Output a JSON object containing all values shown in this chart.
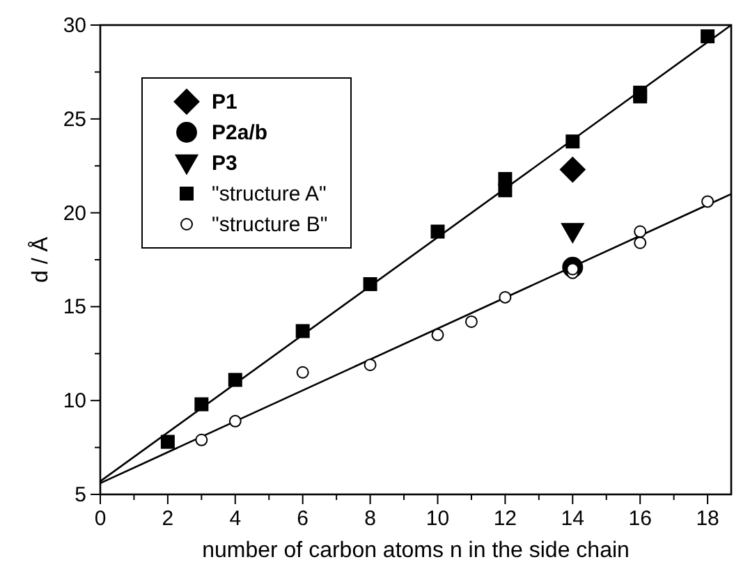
{
  "chart_data": {
    "type": "scatter",
    "xlabel": "number of carbon atoms n in the side chain",
    "ylabel": "d / Å",
    "xlim": [
      0,
      18.7
    ],
    "ylim": [
      5,
      30
    ],
    "xticks": [
      0,
      {
        "value": 1,
        "label": null
      },
      2,
      {
        "value": 3,
        "label": null
      },
      4,
      {
        "value": 5,
        "label": null
      },
      6,
      {
        "value": 7,
        "label": null
      },
      8,
      {
        "value": 9,
        "label": null
      },
      10,
      {
        "value": 11,
        "label": null
      },
      12,
      {
        "value": 13,
        "label": null
      },
      14,
      {
        "value": 15,
        "label": null
      },
      16,
      {
        "value": 17,
        "label": null
      },
      18
    ],
    "yticks": [
      5,
      {
        "value": 7.5,
        "label": null
      },
      10,
      {
        "value": 12.5,
        "label": null
      },
      15,
      {
        "value": 17.5,
        "label": null
      },
      20,
      {
        "value": 22.5,
        "label": null
      },
      25,
      {
        "value": 27.5,
        "label": null
      },
      30
    ],
    "grid": false,
    "legend": "top left",
    "series": [
      {
        "name": "P1",
        "marker": "diamond",
        "color": "#000000",
        "x": [
          14
        ],
        "values": [
          22.3
        ]
      },
      {
        "name": "P2a/b",
        "marker": "circle",
        "color": "#000000",
        "x": [
          14
        ],
        "values": [
          17.1
        ]
      },
      {
        "name": "P3",
        "marker": "triangle",
        "color": "#000000",
        "x": [
          14
        ],
        "values": [
          19.0
        ]
      },
      {
        "name": "\"structure A\"",
        "marker": "square",
        "color": "#000000",
        "x": [
          2,
          3,
          4,
          6,
          8,
          10,
          12,
          12,
          14,
          16,
          16,
          18
        ],
        "values": [
          7.8,
          9.8,
          11.1,
          13.7,
          16.2,
          19.0,
          21.2,
          21.8,
          23.8,
          26.2,
          26.4,
          29.4
        ]
      },
      {
        "name": "\"structure B\"",
        "marker": "circle",
        "color": "#ffffff",
        "x": [
          3,
          4,
          6,
          8,
          10,
          11,
          12,
          14,
          14,
          16,
          16,
          18
        ],
        "values": [
          7.9,
          8.9,
          11.5,
          11.9,
          13.5,
          14.2,
          15.5,
          16.8,
          17.0,
          18.4,
          19.0,
          20.6
        ]
      },
      {
        "type": "line",
        "color": "#000000",
        "x": [
          0,
          18.7
        ],
        "values": [
          5.7,
          30
        ]
      },
      {
        "type": "line",
        "color": "#000000",
        "x": [
          0,
          18.7
        ],
        "values": [
          5.6,
          21.0
        ]
      }
    ]
  }
}
